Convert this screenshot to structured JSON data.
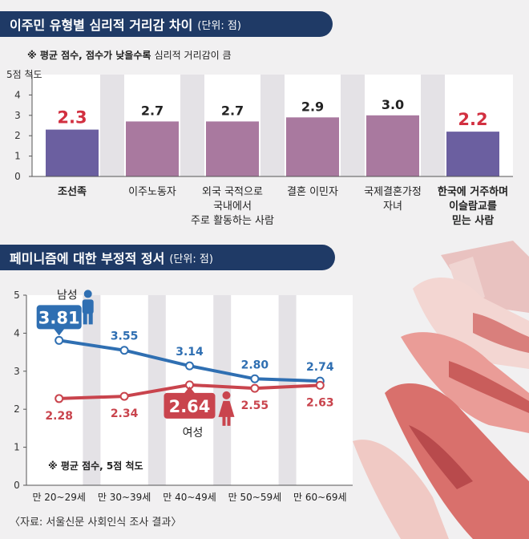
{
  "chart1": {
    "title": "이주민 유형별 심리적 거리감 차이",
    "unit": "(단위: 점)",
    "note_prefix": "※ 평균 점수,",
    "note_emph": "점수가 낮을수록",
    "note_rest": "심리적 거리감이 큼",
    "y_top_label": "5점 척도"
  },
  "chart2": {
    "title": "페미니즘에 대한 부정적 정서",
    "unit": "(단위: 점)",
    "note": "※ 평균 점수, 5점 척도",
    "male_label": "남성",
    "female_label": "여성"
  },
  "source": "〈자료: 서울신문 사회인식 조사 결과〉",
  "colors": {
    "banner": "#1f3a66",
    "highlight_bar": "#6b5fa0",
    "normal_bar": "#a9799f",
    "highlight_text": "#d23040",
    "male": "#2f6fb2",
    "female": "#c9444d"
  },
  "chart_data": [
    {
      "type": "bar",
      "title": "이주민 유형별 심리적 거리감 차이",
      "ylim": [
        0,
        5
      ],
      "yticks": [
        "0",
        "1",
        "2",
        "3",
        "4",
        "5점 척도"
      ],
      "categories": [
        [
          "조선족"
        ],
        [
          "이주노동자"
        ],
        [
          "외국 국적으로",
          "국내에서",
          "주로 활동하는 사람"
        ],
        [
          "결혼 이민자"
        ],
        [
          "국제결혼가정",
          "자녀"
        ],
        [
          "한국에 거주하며",
          "이슬람교를",
          "믿는 사람"
        ]
      ],
      "values": [
        2.3,
        2.7,
        2.7,
        2.9,
        3.0,
        2.2
      ],
      "value_labels": [
        "2.3",
        "2.7",
        "2.7",
        "2.9",
        "3.0",
        "2.2"
      ],
      "highlight": [
        true,
        false,
        false,
        false,
        false,
        true
      ]
    },
    {
      "type": "line",
      "title": "페미니즘에 대한 부정적 정서",
      "ylim": [
        0,
        5
      ],
      "yticks": [
        "0",
        "1",
        "2",
        "3",
        "4",
        "5"
      ],
      "categories": [
        "만 20~29세",
        "만 30~39세",
        "만 40~49세",
        "만 50~59세",
        "만 60~69세"
      ],
      "series": [
        {
          "name": "남성",
          "values": [
            3.81,
            3.55,
            3.14,
            2.8,
            2.74
          ],
          "labels": [
            "3.81",
            "3.55",
            "3.14",
            "2.80",
            "2.74"
          ]
        },
        {
          "name": "여성",
          "values": [
            2.28,
            2.34,
            2.64,
            2.55,
            2.63
          ],
          "labels": [
            "2.28",
            "2.34",
            "2.64",
            "2.55",
            "2.63"
          ]
        }
      ]
    }
  ]
}
